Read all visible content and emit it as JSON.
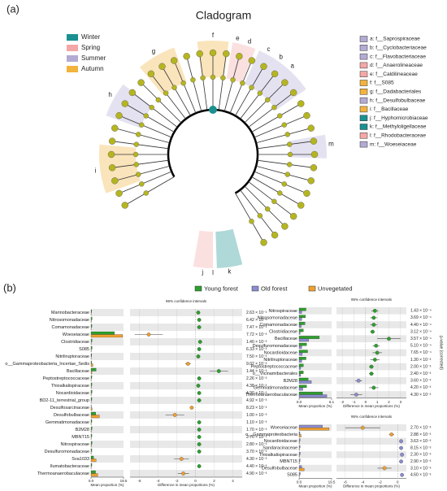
{
  "panel_a": {
    "label": "(a)",
    "title": "Cladogram",
    "seasons": [
      {
        "name": "Winter",
        "color": "#1a9090"
      },
      {
        "name": "Spring",
        "color": "#f4a7a7"
      },
      {
        "name": "Summer",
        "color": "#b3abd3"
      },
      {
        "name": "Autumn",
        "color": "#f2b33d"
      }
    ],
    "taxa": [
      {
        "name": "a: f__Saprospiraceae",
        "color": "#b3abd3"
      },
      {
        "name": "b: f__Cyclobacteriaceae",
        "color": "#b3abd3"
      },
      {
        "name": "c: f__Flavobacteriaceae",
        "color": "#b3abd3"
      },
      {
        "name": "d: f__Anaerolineaceae",
        "color": "#f4a7a7"
      },
      {
        "name": "e: f__Caldilineaceae",
        "color": "#f4a7a7"
      },
      {
        "name": "f: f__S085",
        "color": "#f2b33d"
      },
      {
        "name": "g: f__Dadabacteriales",
        "color": "#f2b33d"
      },
      {
        "name": "h: f__Desulfobulbaceae",
        "color": "#b3abd3"
      },
      {
        "name": "i: f__Bacillaceae",
        "color": "#f2b33d"
      },
      {
        "name": "j: f__Hyphomicrobiaceae",
        "color": "#1a9090"
      },
      {
        "name": "k: f__Methyloligellaceae",
        "color": "#1a9090"
      },
      {
        "name": "l: f__Rhodobacteraceae",
        "color": "#f4a7a7"
      },
      {
        "name": "m: f__Woeseiaceae",
        "color": "#b3abd3"
      }
    ],
    "clade_letters": [
      "a",
      "b",
      "c",
      "d",
      "e",
      "f",
      "g",
      "h",
      "i",
      "j",
      "k",
      "l",
      "m"
    ]
  },
  "panel_b": {
    "label": "(b)",
    "groups": [
      {
        "name": "Young forest",
        "color": "#2ca02c"
      },
      {
        "name": "Old forest",
        "color": "#8c8cd0"
      },
      {
        "name": "Unvegetated",
        "color": "#f0a030"
      }
    ],
    "panels": [
      {
        "ci_title": "95% confidence intervals",
        "mean_label": "Mean proportion (%)",
        "diff_label": "Difference in mean proportions (%)",
        "colors": [
          "#2ca02c",
          "#f0a030"
        ],
        "mean_lim": [
          0,
          19.5
        ],
        "mean_ticks": [
          {
            "value": 0,
            "label": "0.0"
          },
          19.5
        ],
        "diff_lim": [
          -7,
          5
        ],
        "diff_ticks": [
          -6,
          -4,
          -2,
          0,
          2,
          4
        ],
        "rows": [
          {
            "name": "Marinobacteraceae",
            "means": [
              0.4,
              0.1
            ],
            "diff": 0.3,
            "err": 0.2,
            "p": "2.63 × 10⁻³"
          },
          {
            "name": "Nitrosomonadaceae",
            "means": [
              0.6,
              0.2
            ],
            "diff": 0.4,
            "err": 0.2,
            "p": "6.42 × 10⁻³"
          },
          {
            "name": "Comamonadaceae",
            "means": [
              0.5,
              0.1
            ],
            "diff": 0.4,
            "err": 0.2,
            "p": "7.47 × 10⁻³"
          },
          {
            "name": "Woeseiaceae",
            "means": [
              14,
              19
            ],
            "diff": -5,
            "err": 1.5,
            "p": "7.72 × 10⁻³"
          },
          {
            "name": "Clostridiaceae",
            "means": [
              0.6,
              0.1
            ],
            "diff": 0.5,
            "err": 0.2,
            "p": "1.40 × 10⁻³"
          },
          {
            "name": "S085",
            "means": [
              0.6,
              0.2
            ],
            "diff": 0.4,
            "err": 0.2,
            "p": "6.33 × 10⁻³"
          },
          {
            "name": "Nitriliruptoraceae",
            "means": [
              0.4,
              0.1
            ],
            "diff": 0.3,
            "err": 0.2,
            "p": "7.50 × 10⁻³"
          },
          {
            "name": "o__Gammaproteobacteria_Incertae_Sedis",
            "means": [
              0.3,
              1.1
            ],
            "diff": -0.8,
            "err": 0.3,
            "p": "9.02 × 10⁻³"
          },
          {
            "name": "Bacillaceae",
            "means": [
              3,
              0.5
            ],
            "diff": 2.5,
            "err": 1,
            "p": "1.44 × 10⁻³"
          },
          {
            "name": "Peptostreptococcaceae",
            "means": [
              0.5,
              0.1
            ],
            "diff": 0.4,
            "err": 0.2,
            "p": "2.26 × 10⁻³"
          },
          {
            "name": "Thioalkalispiraceae",
            "means": [
              0.5,
              0.2
            ],
            "diff": 0.3,
            "err": 0.2,
            "p": "4.38 × 10⁻³"
          },
          {
            "name": "Nocardioidaceae",
            "means": [
              0.6,
              0.2
            ],
            "diff": 0.4,
            "err": 0.2,
            "p": "4.90 × 10⁻³"
          },
          {
            "name": "BD2-11_terrestrial_group",
            "means": [
              0.5,
              0.1
            ],
            "diff": 0.4,
            "err": 0.2,
            "p": "4.92 × 10⁻³"
          },
          {
            "name": "Desulfosarcinaceae",
            "means": [
              0.2,
              0.6
            ],
            "diff": -0.4,
            "err": 0.2,
            "p": "8.23 × 10⁻³"
          },
          {
            "name": "Desulfobulbaceae",
            "means": [
              2.8,
              5
            ],
            "diff": -2.2,
            "err": 1,
            "p": "1.00 × 10⁻³"
          },
          {
            "name": "Gemmatimonadaceae",
            "means": [
              0.5,
              0.1
            ],
            "diff": 0.4,
            "err": 0.2,
            "p": "1.10 × 10⁻³"
          },
          {
            "name": "B2M28",
            "means": [
              0.6,
              0.2
            ],
            "diff": 0.4,
            "err": 0.2,
            "p": "1.70 × 10⁻³"
          },
          {
            "name": "MBNT15",
            "means": [
              0.5,
              0.1
            ],
            "diff": 0.4,
            "err": 0.2,
            "p": "2.70 × 10⁻³"
          },
          {
            "name": "Nitrospiraceae",
            "means": [
              0.6,
              0.2
            ],
            "diff": 0.4,
            "err": 0.2,
            "p": "2.80 × 10⁻³"
          },
          {
            "name": "Desulfuromonadaceae",
            "means": [
              0.5,
              0.1
            ],
            "diff": 0.4,
            "err": 0.2,
            "p": "3.70 × 10⁻³"
          },
          {
            "name": "Sva1033",
            "means": [
              1.5,
              3
            ],
            "diff": -1.5,
            "err": 0.8,
            "p": "4.30 × 10⁻³"
          },
          {
            "name": "Ilumatobacteraceae",
            "means": [
              0.5,
              0.1
            ],
            "diff": 0.4,
            "err": 0.2,
            "p": "4.40 × 10⁻³"
          },
          {
            "name": "Thermoanaerobaculaceae",
            "means": [
              2.7,
              4
            ],
            "diff": -1.3,
            "err": 0.6,
            "p": "4.90 × 10⁻³"
          }
        ]
      },
      {
        "ci_title": "95% confidence intervals",
        "mean_label": "Mean proportion (%)",
        "diff_label": "Difference in mean proportions (%)",
        "p_label": "p-value (corrected)",
        "colors": [
          "#2ca02c",
          "#8c8cd0"
        ],
        "mean_lim": [
          0,
          6.1
        ],
        "mean_ticks": [
          {
            "value": 0,
            "label": "0.0"
          },
          6.1
        ],
        "diff_lim": [
          -2.5,
          3.5
        ],
        "diff_ticks": [
          -2,
          -1,
          0,
          1,
          2,
          3
        ],
        "rows": [
          {
            "name": "Nitrospiraceae",
            "means": [
              1.3,
              0.5
            ],
            "diff": 0.8,
            "err": 0.3,
            "p": "1.43 × 10⁻⁴"
          },
          {
            "name": "Nitrosomonadaceae",
            "means": [
              1.2,
              0.5
            ],
            "diff": 0.7,
            "err": 0.3,
            "p": "3.69 × 10⁻⁴"
          },
          {
            "name": "Comamonadaceae",
            "means": [
              1.1,
              0.4
            ],
            "diff": 0.7,
            "err": 0.3,
            "p": "4.40 × 10⁻⁴"
          },
          {
            "name": "Clostridiaceae",
            "means": [
              0.8,
              0.2
            ],
            "diff": 0.6,
            "err": 0.2,
            "p": "3.12 × 10⁻⁴"
          },
          {
            "name": "Bacillaceae",
            "means": [
              3.8,
              1.8
            ],
            "diff": 2,
            "err": 1,
            "p": "3.57 × 10⁻⁴"
          },
          {
            "name": "Desulfuromonadaceae",
            "means": [
              1.4,
              0.5
            ],
            "diff": 0.9,
            "err": 0.3,
            "p": "5.10 × 10⁻⁴"
          },
          {
            "name": "Nocardioidaceae",
            "means": [
              1.6,
              0.6
            ],
            "diff": 1,
            "err": 0.4,
            "p": "7.65 × 10⁻⁴"
          },
          {
            "name": "Nitriliruptoraceae",
            "means": [
              1.3,
              0.5
            ],
            "diff": 0.8,
            "err": 0.4,
            "p": "1.30 × 10⁻³"
          },
          {
            "name": "Peptostreptococcaceae",
            "means": [
              0.8,
              0.3
            ],
            "diff": 0.5,
            "err": 0.2,
            "p": "2.00 × 10⁻³"
          },
          {
            "name": "o__Vicinamibacterales",
            "means": [
              0.8,
              0.3
            ],
            "diff": 0.5,
            "err": 0.2,
            "p": "2.40 × 10⁻³"
          },
          {
            "name": "B2M28",
            "means": [
              1.7,
              2.3
            ],
            "diff": -0.6,
            "err": 0.3,
            "p": "3.60 × 10⁻³"
          },
          {
            "name": "Gemmatimonadaceae",
            "means": [
              1.4,
              0.7
            ],
            "diff": 0.7,
            "err": 0.4,
            "p": "4.20 × 10⁻³"
          },
          {
            "name": "Thermoanaerobaculaceae",
            "means": [
              4.4,
              5.2
            ],
            "diff": -0.8,
            "err": 0.5,
            "p": "4.30 × 10⁻³"
          }
        ]
      },
      {
        "ci_title": "95% confidence intervals",
        "mean_label": "Mean proportion (%)",
        "diff_label": "Difference in mean proportions (%)",
        "colors": [
          "#8c8cd0",
          "#f0a030"
        ],
        "mean_lim": [
          0,
          19.5
        ],
        "mean_ticks": [
          {
            "value": 0,
            "label": "0.0"
          },
          19.5
        ],
        "diff_lim": [
          -7,
          1
        ],
        "diff_ticks": [
          -6,
          -4,
          -2,
          0
        ],
        "rows": [
          {
            "name": "Woeseiaceae",
            "means": [
              14,
              18
            ],
            "diff": -4,
            "err": 2,
            "p": "2.70 × 10⁻³"
          },
          {
            "name": "o__Gammaproteobacteria",
            "means": [
              0.5,
              1.2
            ],
            "diff": -0.7,
            "err": 0.3,
            "p": "2.88 × 10⁻³"
          },
          {
            "name": "Nocardioidaceae",
            "means": [
              0.6,
              0.2
            ],
            "diff": 0.4,
            "err": 0.2,
            "p": "3.63 × 10⁻³"
          },
          {
            "name": "Sandaracinaceae",
            "means": [
              0.6,
              0.2
            ],
            "diff": 0.4,
            "err": 0.2,
            "p": "8.15 × 10⁻³"
          },
          {
            "name": "Thioalkalispiraceae",
            "means": [
              0.7,
              0.2
            ],
            "diff": 0.5,
            "err": 0.2,
            "p": "2.30 × 10⁻³"
          },
          {
            "name": "MBNT15",
            "means": [
              0.6,
              0.2
            ],
            "diff": 0.4,
            "err": 0.2,
            "p": "2.90 × 10⁻³"
          },
          {
            "name": "Desulfobulbaceae",
            "means": [
              1.5,
              3
            ],
            "diff": -1.5,
            "err": 0.8,
            "p": "3.10 × 10⁻³"
          },
          {
            "name": "S085",
            "means": [
              0.7,
              0.2
            ],
            "diff": 0.5,
            "err": 0.2,
            "p": "4.60 × 10⁻³"
          }
        ]
      }
    ]
  }
}
